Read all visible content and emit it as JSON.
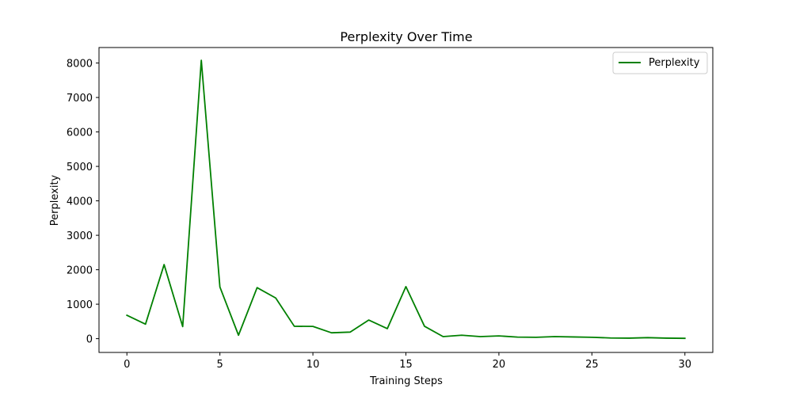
{
  "chart_data": {
    "type": "line",
    "title": "Perplexity Over Time",
    "xlabel": "Training Steps",
    "ylabel": "Perplexity",
    "xlim": [
      -1.5,
      31.5
    ],
    "ylim": [
      -400,
      8450
    ],
    "xticks": [
      0,
      5,
      10,
      15,
      20,
      25,
      30
    ],
    "yticks": [
      0,
      1000,
      2000,
      3000,
      4000,
      5000,
      6000,
      7000,
      8000
    ],
    "grid": false,
    "legend_position": "top-right",
    "series": [
      {
        "name": "Perplexity",
        "color": "#008000",
        "x": [
          0,
          1,
          2,
          3,
          4,
          5,
          6,
          7,
          8,
          9,
          10,
          11,
          12,
          13,
          14,
          15,
          16,
          17,
          18,
          19,
          20,
          21,
          22,
          23,
          24,
          25,
          26,
          27,
          28,
          29,
          30
        ],
        "values": [
          680,
          420,
          2150,
          350,
          8080,
          1500,
          100,
          1480,
          1180,
          360,
          355,
          170,
          190,
          540,
          290,
          1510,
          360,
          60,
          100,
          60,
          80,
          45,
          40,
          60,
          50,
          40,
          20,
          15,
          30,
          15,
          10
        ]
      }
    ]
  }
}
